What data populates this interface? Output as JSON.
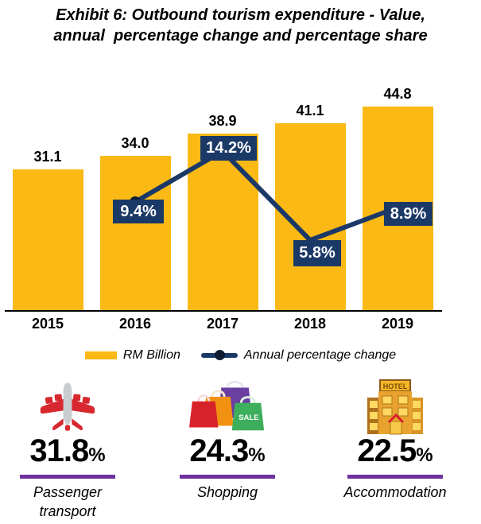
{
  "title": "Exhibit 6: Outbound tourism expenditure - Value,\nannual  percentage change and percentage share",
  "colors": {
    "bar": "#FBB916",
    "line": "#1B3967",
    "label_box": "#1B3967",
    "marker_dot": "#0E1B33",
    "underline": "#7030A0",
    "axis": "#000000"
  },
  "chart_data": {
    "type": "bar",
    "categories": [
      "2015",
      "2016",
      "2017",
      "2018",
      "2019"
    ],
    "series": [
      {
        "name": "RM Billion",
        "type": "bar",
        "values": [
          31.1,
          34.0,
          38.9,
          41.1,
          44.8
        ],
        "labels": [
          "31.1",
          "34.0",
          "38.9",
          "41.1",
          "44.8"
        ]
      },
      {
        "name": "Annual percentage change",
        "type": "line",
        "unit": "%",
        "values": [
          null,
          9.4,
          14.2,
          5.8,
          8.9
        ],
        "labels": [
          null,
          "9.4%",
          "14.2%",
          "5.8%",
          "8.9%"
        ]
      }
    ],
    "xlabel": "",
    "ylabel": "",
    "ylim": [
      0,
      48
    ],
    "grid": false,
    "legend_position": "bottom"
  },
  "legend": {
    "bar_label": "RM Billion",
    "line_label": "Annual percentage change"
  },
  "stats": [
    {
      "icon": "airplane-icon",
      "value": "31.8",
      "unit": "%",
      "label": "Passenger transport"
    },
    {
      "icon": "shopping-bags-icon",
      "value": "24.3",
      "unit": "%",
      "label": "Shopping"
    },
    {
      "icon": "hotel-icon",
      "value": "22.5",
      "unit": "%",
      "label": "Accommodation"
    }
  ]
}
